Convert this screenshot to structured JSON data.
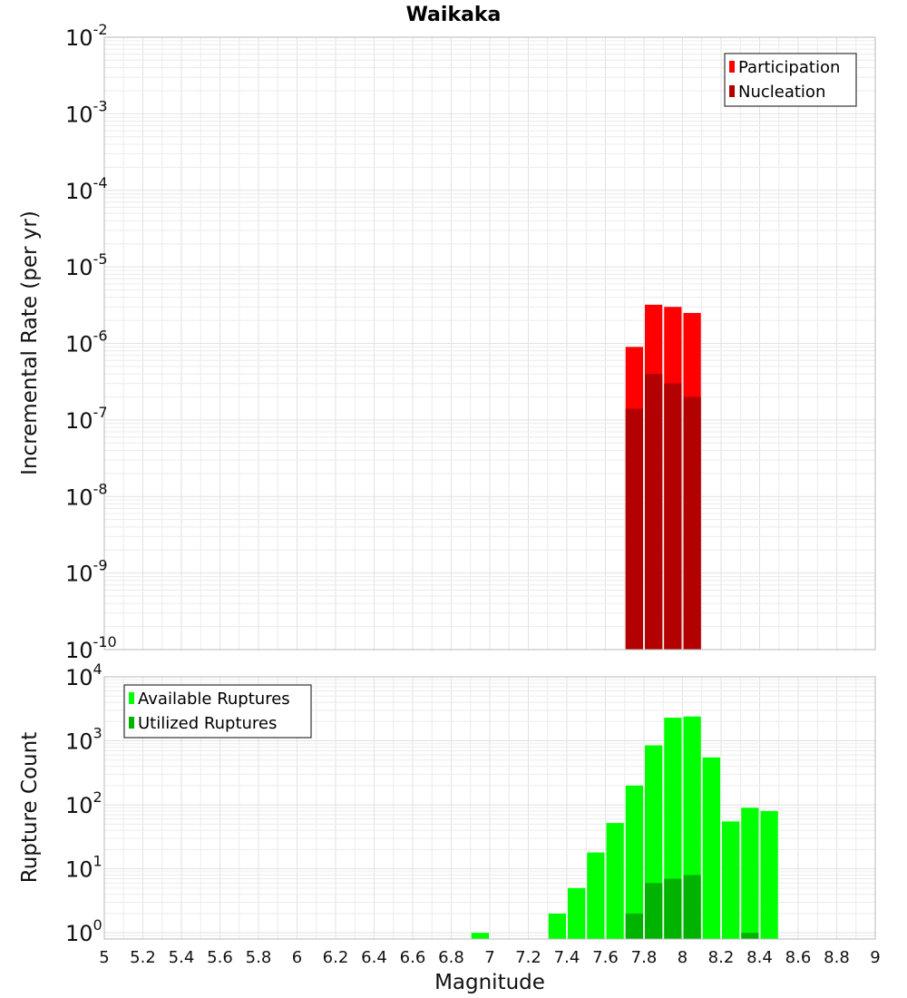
{
  "title": "Waikaka",
  "xlabel": "Magnitude",
  "x_ticks": [
    "5",
    "5.2",
    "5.4",
    "5.6",
    "5.8",
    "6",
    "6.2",
    "6.4",
    "6.6",
    "6.8",
    "7",
    "7.2",
    "7.4",
    "7.6",
    "7.8",
    "8",
    "8.2",
    "8.4",
    "8.6",
    "8.8",
    "9"
  ],
  "chart_data": [
    {
      "type": "bar",
      "yscale": "log",
      "ylabel": "Incremental Rate (per yr)",
      "xlim": [
        5,
        9
      ],
      "ylim": [
        1e-10,
        0.01
      ],
      "bin_width": 0.1,
      "y_tick_exponents": [
        "-2",
        "-3",
        "-4",
        "-5",
        "-6",
        "-7",
        "-8",
        "-9",
        "-10"
      ],
      "y_tick_base": "10",
      "legend": {
        "position": "top-right",
        "entries": [
          "Participation",
          "Nucleation"
        ]
      },
      "colors": {
        "Participation": "#ff0000",
        "Nucleation": "#b30000"
      },
      "series": [
        {
          "name": "Participation",
          "x": [
            7.75,
            7.85,
            7.95,
            8.05
          ],
          "values": [
            9e-07,
            3.2e-06,
            3e-06,
            2.5e-06
          ]
        },
        {
          "name": "Nucleation",
          "x": [
            7.75,
            7.85,
            7.95,
            8.05
          ],
          "values": [
            1.4e-07,
            4e-07,
            3e-07,
            2e-07
          ]
        }
      ]
    },
    {
      "type": "bar",
      "yscale": "log",
      "ylabel": "Rupture Count",
      "xlim": [
        5,
        9
      ],
      "ylim": [
        0.8,
        10000
      ],
      "bin_width": 0.1,
      "y_tick_exponents": [
        "4",
        "3",
        "2",
        "1",
        "0"
      ],
      "y_tick_base": "10",
      "legend": {
        "position": "top-left",
        "entries": [
          "Available Ruptures",
          "Utilized Ruptures"
        ]
      },
      "colors": {
        "Available Ruptures": "#00ff00",
        "Utilized Ruptures": "#00b300"
      },
      "series": [
        {
          "name": "Available Ruptures",
          "x": [
            6.95,
            7.35,
            7.45,
            7.55,
            7.65,
            7.75,
            7.85,
            7.95,
            8.05,
            8.15,
            8.25,
            8.35,
            8.45
          ],
          "values": [
            1,
            2,
            5,
            18,
            52,
            200,
            850,
            2300,
            2400,
            550,
            55,
            90,
            80
          ]
        },
        {
          "name": "Utilized Ruptures",
          "x": [
            7.75,
            7.85,
            7.95,
            8.05,
            8.35
          ],
          "values": [
            2,
            6,
            7,
            8,
            1
          ]
        }
      ]
    }
  ]
}
